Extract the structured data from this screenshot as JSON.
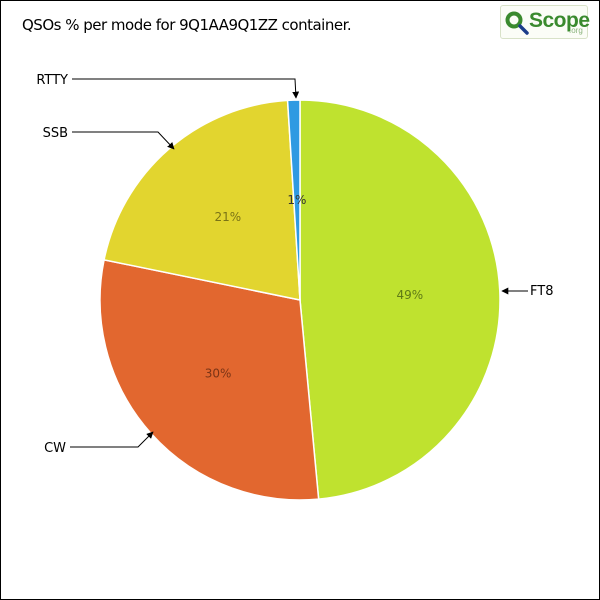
{
  "title": "QSOs % per mode for 9Q1AA9Q1ZZ container.",
  "logo": {
    "text": "Scope",
    "tld": ".org"
  },
  "chart_data": {
    "type": "pie",
    "title": "QSOs % per mode for 9Q1AA9Q1ZZ container.",
    "slices": [
      {
        "label": "FT8",
        "value": 49,
        "display": "49%",
        "color": "#bfe22f"
      },
      {
        "label": "CW",
        "value": 30,
        "display": "30%",
        "color": "#e2672f"
      },
      {
        "label": "SSB",
        "value": 21,
        "display": "21%",
        "color": "#e2d52f"
      },
      {
        "label": "RTTY",
        "value": 1,
        "display": "1%",
        "color": "#2f9ae2"
      }
    ]
  }
}
